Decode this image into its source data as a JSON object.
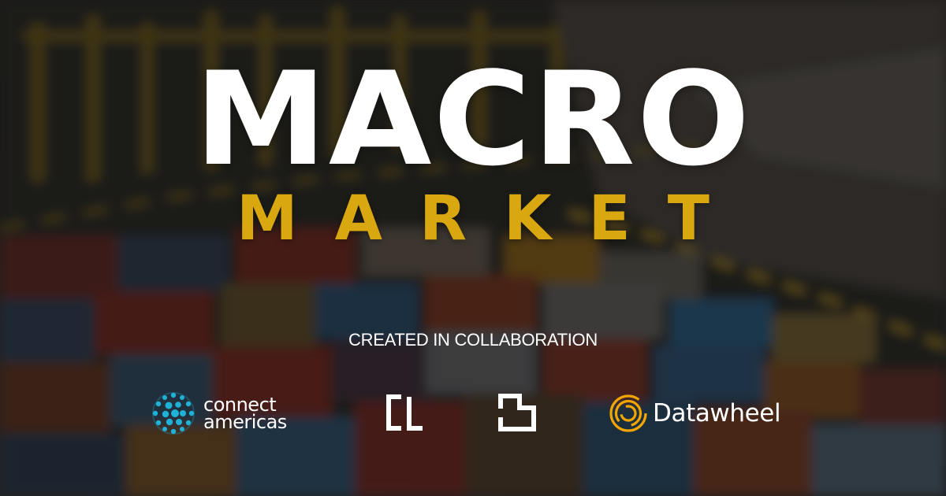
{
  "banner": {
    "title": "MACRO",
    "subtitle": "MARKET",
    "tagline": "CREATED IN COLLABORATION"
  },
  "partners": [
    {
      "icon": "connect-americas-globe-icon",
      "line1": "connect",
      "line2": "americas"
    },
    {
      "icon": "cl-bracket-logo-icon"
    },
    {
      "icon": "step-square-logo-icon"
    },
    {
      "icon": "datawheel-rings-icon",
      "name": "Datawheel"
    }
  ],
  "colors": {
    "title": "#ffffff",
    "subtitle_accent": "#d9a70f",
    "tagline": "#ffffff",
    "datawheel_accent": "#f0a500",
    "connect_americas_accent": "#1fb2d6"
  }
}
